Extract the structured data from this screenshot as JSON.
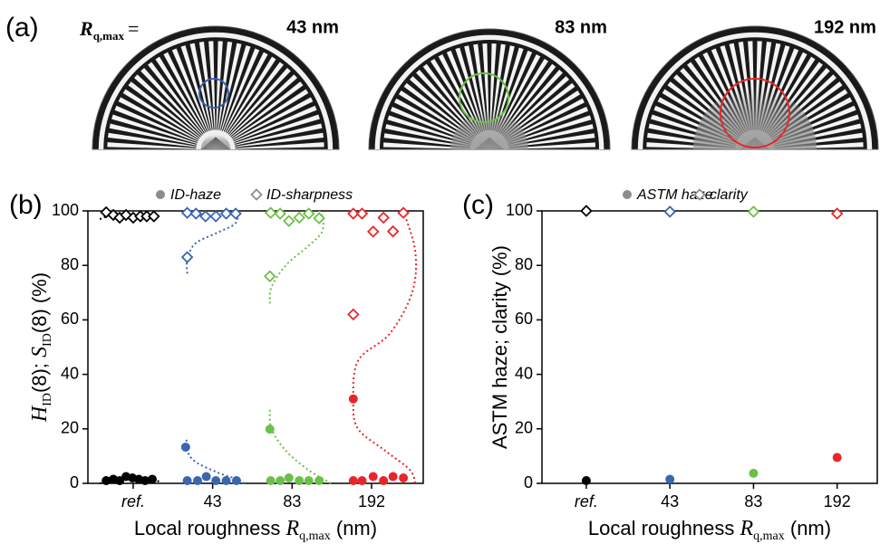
{
  "panel_a": {
    "label": "(a)",
    "rq_symbol": "R",
    "rq_subscript": "q,max",
    "equals": "=",
    "images": [
      {
        "caption": "43 nm",
        "circle_color": "#3a5fb0"
      },
      {
        "caption": "83 nm",
        "circle_color": "#6cc04a"
      },
      {
        "caption": "192 nm",
        "circle_color": "#e8262a"
      }
    ]
  },
  "chart_data": [
    {
      "type": "scatter",
      "panel_label": "(b)",
      "legend": [
        {
          "name": "ID-haze",
          "marker": "circle",
          "color": "#8c8c8c"
        },
        {
          "name": "ID-sharpness",
          "marker": "diamond",
          "color": "#8c8c8c"
        }
      ],
      "xlabel": [
        "Local roughness ",
        "R",
        "q,max",
        " (nm)"
      ],
      "ylabel": [
        "H",
        "ID",
        "(8); ",
        "S",
        "ID",
        "(8) (%)"
      ],
      "xlim": [
        -0.57,
        3.65
      ],
      "xticks": [
        {
          "value": 0,
          "label": "ref."
        },
        {
          "value": 1,
          "label": "43"
        },
        {
          "value": 2,
          "label": "83"
        },
        {
          "value": 3,
          "label": "192"
        }
      ],
      "ylim": [
        0,
        100
      ],
      "yticks": [
        0,
        20,
        40,
        60,
        80,
        100
      ],
      "series": [
        {
          "marker": "circle",
          "color": "#000000",
          "x": [
            -0.34,
            -0.25,
            -0.17,
            -0.09,
            -0.01,
            0.07,
            0.15,
            0.24
          ],
          "values": [
            1,
            1.5,
            1,
            2.5,
            2,
            1.5,
            1,
            1.5
          ]
        },
        {
          "marker": "diamond",
          "color": "#000000",
          "x": [
            -0.34,
            -0.25,
            -0.17,
            -0.09,
            0,
            0.09,
            0.17,
            0.26
          ],
          "values": [
            99.5,
            98.5,
            97.5,
            98.5,
            97.5,
            98,
            98,
            98
          ]
        },
        {
          "marker": "circle",
          "color": "#3a66b0",
          "x": [
            0.66,
            0.68,
            0.81,
            0.92,
            1.04,
            1.17,
            1.3
          ],
          "values": [
            13.3,
            1,
            1,
            2.5,
            1,
            1,
            1
          ]
        },
        {
          "marker": "diamond",
          "color": "#3a66b0",
          "x": [
            0.68,
            0.68,
            0.79,
            0.91,
            1.04,
            1.17,
            1.29
          ],
          "values": [
            83,
            99.3,
            99,
            98,
            98,
            99,
            99
          ]
        },
        {
          "marker": "circle",
          "color": "#6cc04a",
          "x": [
            1.72,
            1.73,
            1.85,
            1.96,
            2.09,
            2.21,
            2.34
          ],
          "values": [
            19.9,
            1,
            1,
            2,
            1,
            1,
            1
          ]
        },
        {
          "marker": "diamond",
          "color": "#6cc04a",
          "x": [
            1.72,
            1.73,
            1.85,
            1.96,
            2.09,
            2.21,
            2.34
          ],
          "values": [
            76,
            99.3,
            99,
            96.3,
            97.5,
            99,
            97.3
          ]
        },
        {
          "marker": "circle",
          "color": "#e8262a",
          "x": [
            2.77,
            2.77,
            2.88,
            3.02,
            3.15,
            3.27,
            3.4
          ],
          "values": [
            31,
            1,
            1,
            2.5,
            1,
            2.5,
            2
          ]
        },
        {
          "marker": "diamond",
          "color": "#e8262a",
          "x": [
            2.77,
            2.77,
            2.88,
            3.02,
            3.15,
            3.27,
            3.4
          ],
          "values": [
            62,
            99,
            99,
            92.4,
            97.5,
            92.5,
            99.3
          ]
        }
      ],
      "fits": [
        {
          "color": "#000000",
          "x": [
            -0.42,
            -0.25,
            0.03,
            0.26,
            0.35
          ],
          "values": [
            0,
            1.5,
            2.5,
            1.5,
            0
          ]
        },
        {
          "color": "#000000",
          "x": [
            -0.42,
            -0.25,
            0.03,
            0.26,
            0.35
          ],
          "values": [
            97,
            98.5,
            97.5,
            98.5,
            97.5
          ]
        },
        {
          "color": "#3a66b0",
          "x": [
            0.67,
            0.68,
            0.78,
            1.06,
            1.31,
            1.4
          ],
          "values": [
            16,
            12,
            8,
            4,
            1.5,
            0
          ]
        },
        {
          "color": "#3a66b0",
          "x": [
            0.68,
            0.68,
            0.78,
            1.06,
            1.27,
            1.32,
            1.31
          ],
          "values": [
            77,
            82,
            88,
            92,
            95,
            98,
            100
          ]
        },
        {
          "color": "#6cc04a",
          "x": [
            1.72,
            1.74,
            1.92,
            2.2,
            2.43,
            2.49
          ],
          "values": [
            27,
            20,
            12,
            5,
            1,
            0
          ]
        },
        {
          "color": "#6cc04a",
          "x": [
            1.72,
            1.74,
            1.92,
            2.2,
            2.37,
            2.39,
            2.34
          ],
          "values": [
            66,
            72,
            80,
            87,
            92,
            97,
            100
          ]
        },
        {
          "color": "#e8262a",
          "x": [
            3.4,
            3.55,
            3.51,
            3.23,
            2.83,
            2.77,
            2.83,
            3.17,
            3.48,
            3.55
          ],
          "values": [
            100,
            85,
            70,
            55,
            45,
            30,
            20,
            12,
            5,
            0
          ]
        }
      ]
    },
    {
      "type": "scatter",
      "panel_label": "(c)",
      "legend": [
        {
          "name": "ASTM haze",
          "marker": "circle",
          "color": "#8c8c8c"
        },
        {
          "name": "clarity",
          "marker": "diamond",
          "color": "#8c8c8c"
        }
      ],
      "xlabel": [
        "Local roughness ",
        "R",
        "q,max",
        " (nm)"
      ],
      "ylabel": [
        "ASTM haze; clarity (%)"
      ],
      "xlim": [
        -0.53,
        3.48
      ],
      "xticks": [
        {
          "value": 0,
          "label": "ref."
        },
        {
          "value": 1,
          "label": "43"
        },
        {
          "value": 2,
          "label": "83"
        },
        {
          "value": 3,
          "label": "192"
        }
      ],
      "ylim": [
        0,
        100
      ],
      "yticks": [
        0,
        20,
        40,
        60,
        80,
        100
      ],
      "series": [
        {
          "marker": "circle",
          "colors": [
            "#000000",
            "#3a66b0",
            "#6cc04a",
            "#e8262a"
          ],
          "x": [
            0,
            1,
            2,
            3
          ],
          "values": [
            1,
            1.5,
            3.7,
            9.5
          ]
        },
        {
          "marker": "diamond",
          "colors": [
            "#000000",
            "#3a66b0",
            "#6cc04a",
            "#e8262a"
          ],
          "x": [
            0,
            1,
            2,
            3
          ],
          "values": [
            100,
            99.7,
            99.7,
            99
          ]
        }
      ],
      "fits": []
    }
  ]
}
